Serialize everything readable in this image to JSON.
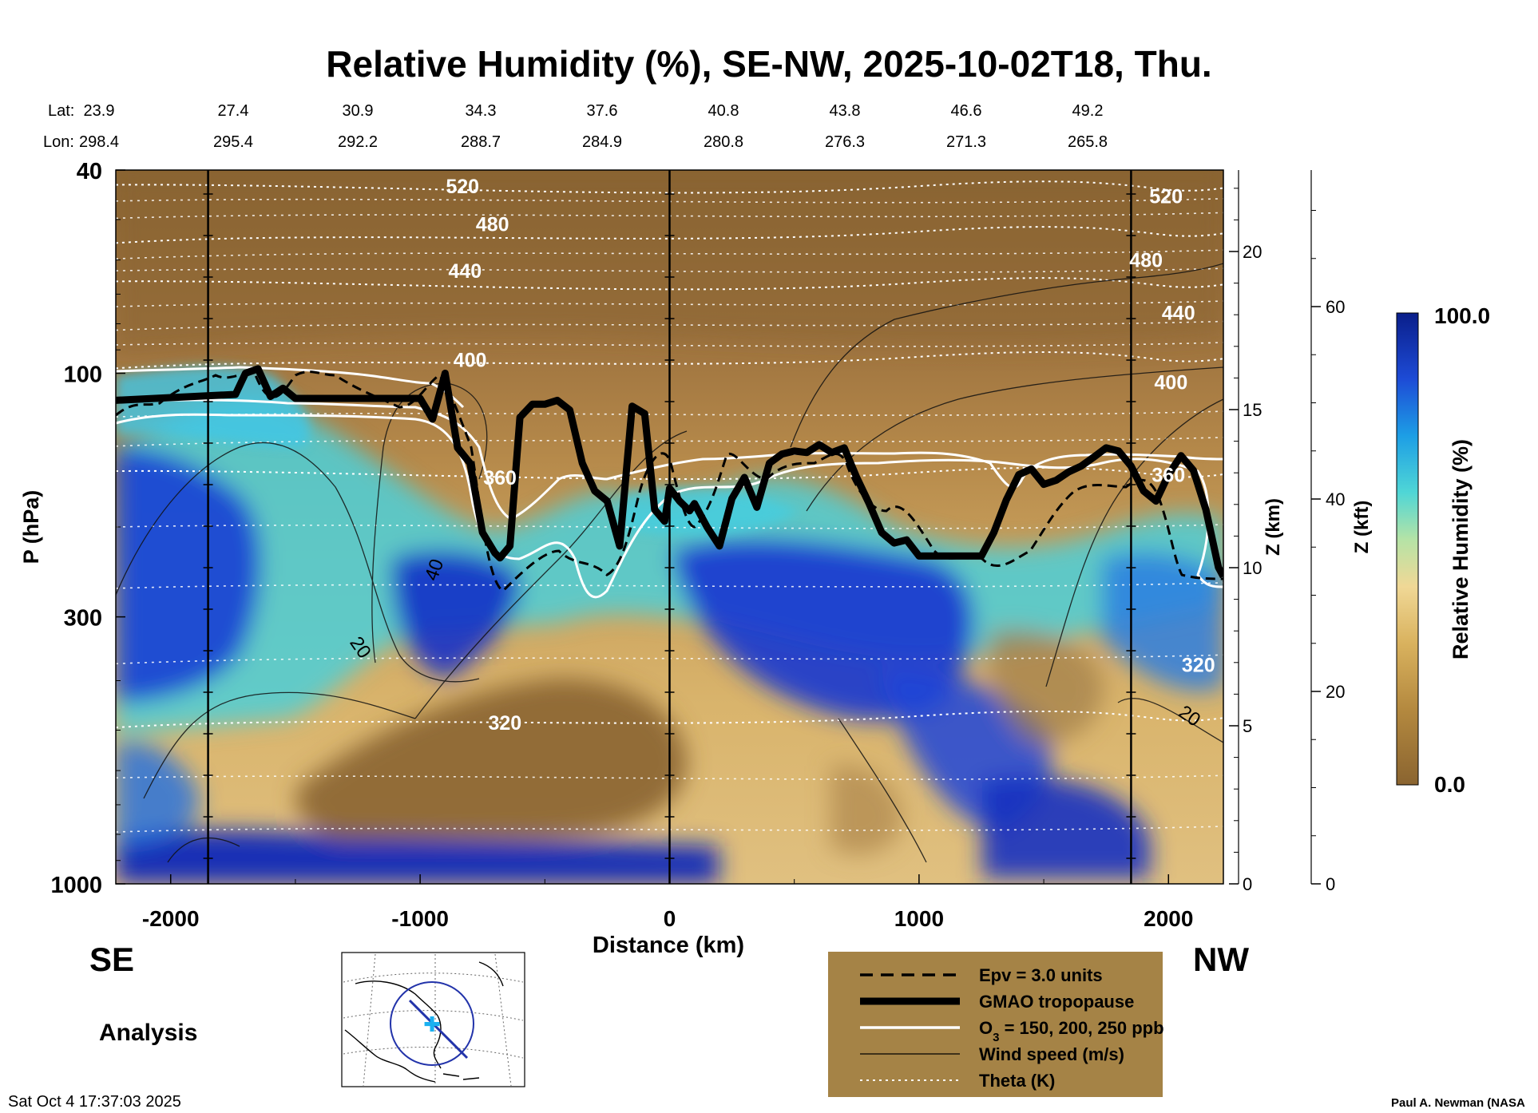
{
  "chart_data": {
    "type": "heatmap",
    "title": "Relative Humidity (%), SE-NW, 2025-10-02T18, Thu.",
    "xlabel": "Distance (km)",
    "ylabel": "P (hPa)",
    "y2label": "Z (km)",
    "y3label": "Z (kft)",
    "xlim": [
      -2220,
      2220
    ],
    "ylim_hpa": [
      1000,
      40
    ],
    "x_ticks": [
      -2000,
      -1000,
      0,
      1000,
      2000
    ],
    "x_tick_labels": [
      "-2000",
      "-1000",
      "0",
      "1000",
      "2000"
    ],
    "p_ticks": [
      40,
      100,
      300,
      1000
    ],
    "p_tick_labels": [
      "40",
      "100",
      "300",
      "1000"
    ],
    "z_km_ticks": [
      0,
      5,
      10,
      15,
      20
    ],
    "z_km_tick_labels": [
      "0",
      "5",
      "10",
      "15",
      "20"
    ],
    "z_kft_ticks": [
      0,
      20,
      40,
      60
    ],
    "z_kft_tick_labels": [
      "0",
      "20",
      "40",
      "60"
    ],
    "lat_label": "Lat:",
    "lon_label": "Lon:",
    "lat": [
      "23.9",
      "27.4",
      "30.9",
      "34.3",
      "37.6",
      "40.8",
      "43.8",
      "46.6",
      "49.2"
    ],
    "lon": [
      "298.4",
      "295.4",
      "292.2",
      "288.7",
      "284.9",
      "280.8",
      "276.3",
      "271.3",
      "265.8"
    ],
    "colorbar": {
      "label": "Relative Humidity (%)",
      "max_label": "100.0",
      "min_label": "0.0",
      "range": [
        0,
        100
      ]
    },
    "vertical_lines_km": [
      -1850,
      0,
      1850
    ],
    "theta_contours": [
      {
        "label": "520",
        "theta": 520,
        "p_hpa": 44
      },
      {
        "label": "480",
        "theta": 480,
        "p_hpa": 54
      },
      {
        "label": "440",
        "theta": 440,
        "p_hpa": 68
      },
      {
        "label": "400",
        "theta": 400,
        "p_hpa": 95
      },
      {
        "label": "360",
        "theta": 360,
        "p_hpa": 160
      },
      {
        "label": "320",
        "theta": 320,
        "p_hpa": 480
      }
    ],
    "theta_labels": [
      {
        "text": "520",
        "x_km": -830,
        "p_hpa": 43
      },
      {
        "text": "480",
        "x_km": -710,
        "p_hpa": 51
      },
      {
        "text": "440",
        "x_km": -820,
        "p_hpa": 63
      },
      {
        "text": "400",
        "x_km": -800,
        "p_hpa": 94
      },
      {
        "text": "360",
        "x_km": -680,
        "p_hpa": 160
      },
      {
        "text": "320",
        "x_km": -660,
        "p_hpa": 483
      },
      {
        "text": "520",
        "x_km": 1990,
        "p_hpa": 45
      },
      {
        "text": "480",
        "x_km": 1910,
        "p_hpa": 60
      },
      {
        "text": "440",
        "x_km": 2040,
        "p_hpa": 76
      },
      {
        "text": "400",
        "x_km": 2010,
        "p_hpa": 104
      },
      {
        "text": "360",
        "x_km": 2000,
        "p_hpa": 158
      },
      {
        "text": "320",
        "x_km": 2120,
        "p_hpa": 372
      }
    ],
    "wind_labels": [
      {
        "text": "40",
        "x_km": -920,
        "p_hpa": 245
      },
      {
        "text": "20",
        "x_km": -1260,
        "p_hpa": 350
      },
      {
        "text": "20",
        "x_km": 2070,
        "p_hpa": 480
      }
    ],
    "tropopause_hpa": {
      "x": [
        -2220,
        -1740,
        -1700,
        -1650,
        -1600,
        -1550,
        -1500,
        -1000,
        -950,
        -900,
        -850,
        -800,
        -750,
        -700,
        -680,
        -640,
        -600,
        -550,
        -500,
        -450,
        -400,
        -350,
        -300,
        -250,
        -200,
        -150,
        -100,
        -60,
        -20,
        0,
        40,
        80,
        100,
        150,
        200,
        250,
        300,
        350,
        400,
        450,
        500,
        550,
        600,
        650,
        700,
        750,
        800,
        850,
        900,
        950,
        1000,
        1100,
        1250,
        1300,
        1350,
        1400,
        1450,
        1500,
        1550,
        1600,
        1650,
        1700,
        1750,
        1800,
        1850,
        1900,
        1950,
        2000,
        2050,
        2100,
        2150,
        2200,
        2220
      ],
      "p": [
        113,
        110,
        100,
        98,
        111,
        107,
        112,
        112,
        123,
        100,
        140,
        150,
        205,
        225,
        230,
        218,
        122,
        115,
        115,
        113,
        118,
        150,
        170,
        178,
        218,
        116,
        120,
        185,
        195,
        168,
        178,
        186,
        180,
        200,
        218,
        176,
        160,
        183,
        150,
        144,
        142,
        143,
        138,
        143,
        140,
        160,
        180,
        205,
        215,
        212,
        228,
        228,
        228,
        205,
        177,
        158,
        154,
        165,
        162,
        156,
        152,
        146,
        140,
        142,
        152,
        170,
        178,
        158,
        145,
        155,
        185,
        240,
        250
      ]
    },
    "legend": [
      {
        "style": "dashed",
        "label": "Epv = 3.0 units"
      },
      {
        "style": "thick",
        "label": "GMAO tropopause"
      },
      {
        "style": "white",
        "label": "O",
        "sub": "3",
        "rest": " = 150, 200, 250 ppb"
      },
      {
        "style": "thin",
        "label": "Wind speed (m/s)"
      },
      {
        "style": "dotted",
        "label": "Theta (K)"
      }
    ]
  },
  "labels": {
    "se": "SE",
    "nw": "NW",
    "analysis": "Analysis",
    "timestamp": "Sat Oct  4 17:37:03 2025",
    "credit": "Paul A. Newman (NASA"
  }
}
